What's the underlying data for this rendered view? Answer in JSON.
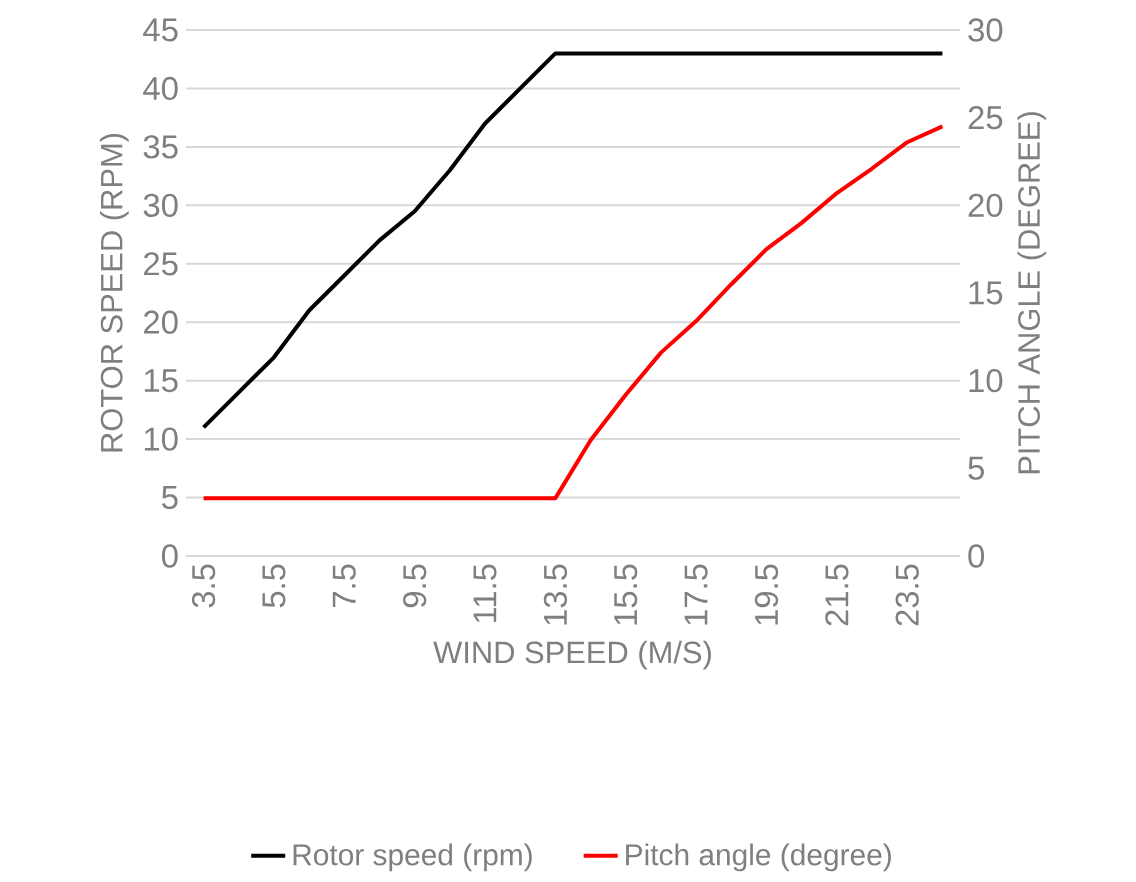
{
  "chart_data": {
    "type": "line",
    "xlabel": "WIND SPEED (M/S)",
    "ylabel": "ROTOR SPEED (RPM)",
    "y2label": "PITCH ANGLE (DEGREE)",
    "categories": [
      "3.5",
      null,
      "5.5",
      null,
      "7.5",
      null,
      "9.5",
      null,
      "11.5",
      null,
      "13.5",
      null,
      "15.5",
      null,
      "17.5",
      null,
      "19.5",
      null,
      "21.5",
      null,
      "23.5",
      null
    ],
    "series": [
      {
        "name": "Rotor speed (rpm)",
        "color": "#000000",
        "values": [
          11,
          14,
          17,
          21,
          24,
          27,
          29.5,
          33,
          37,
          40,
          43,
          43,
          43,
          43,
          43,
          43,
          43,
          43,
          43,
          43,
          43,
          43
        ]
      },
      {
        "name": "Pitch angle (degree)",
        "color": "#ff0000",
        "axis": "y2",
        "values": [
          3.3,
          3.3,
          3.3,
          3.3,
          3.3,
          3.3,
          3.3,
          3.3,
          3.3,
          3.3,
          3.3,
          6.6,
          9.2,
          11.6,
          13.4,
          15.5,
          17.5,
          19,
          20.7,
          22.1,
          23.6,
          24.5
        ]
      }
    ],
    "ylim": [
      0,
      45
    ],
    "yticks": [
      0,
      5,
      10,
      15,
      20,
      25,
      30,
      35,
      40,
      45
    ],
    "y2lim": [
      0,
      30
    ],
    "y2ticks": [
      0,
      5,
      10,
      15,
      20,
      25,
      30
    ],
    "grid": "y",
    "legend": "bottom",
    "line_style": "solid"
  }
}
